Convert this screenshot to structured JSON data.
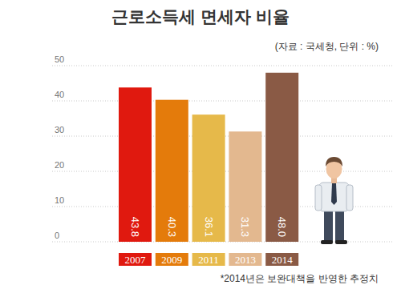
{
  "chart_data": {
    "type": "bar",
    "title": "근로소득세 면세자 비율",
    "subtitle": "(자료 : 국세청, 단위 : %)",
    "categories": [
      "2007",
      "2009",
      "2011",
      "2013",
      "2014"
    ],
    "values": [
      43.8,
      40.3,
      36.1,
      31.3,
      48.0
    ],
    "value_labels": [
      "43.8",
      "40.3",
      "36.1",
      "31.3",
      "48.0"
    ],
    "colors": [
      "#e0190f",
      "#e47b0b",
      "#e6b94a",
      "#e3b88f",
      "#8a5a45"
    ],
    "ylim": [
      0,
      50
    ],
    "yticks": [
      0,
      10,
      20,
      30,
      40,
      50
    ],
    "grid": true,
    "data_labels": true,
    "annotations": [
      "*2014년은 보완대책을 반영한 추정치"
    ]
  }
}
